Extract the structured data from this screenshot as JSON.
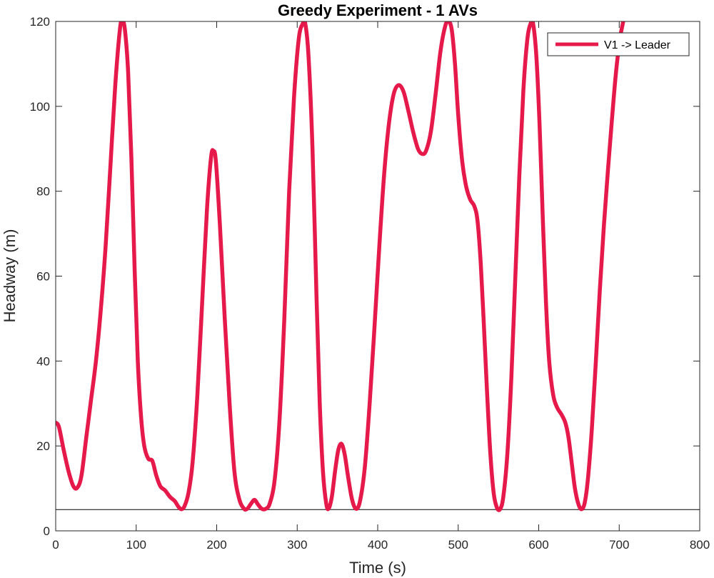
{
  "chart_data": {
    "type": "line",
    "title": "Greedy Experiment - 1 AVs",
    "xlabel": "Time (s)",
    "ylabel": "Headway (m)",
    "xlim": [
      0,
      800
    ],
    "ylim": [
      0,
      120
    ],
    "xticks": [
      0,
      100,
      200,
      300,
      400,
      500,
      600,
      700,
      800
    ],
    "yticks": [
      0,
      20,
      40,
      60,
      80,
      100,
      120
    ],
    "grid": false,
    "legend_position": "top-right",
    "series": [
      {
        "name": "V1 -> Leader",
        "color": "#e6194b",
        "points": [
          [
            0,
            25.5
          ],
          [
            4,
            24.5
          ],
          [
            10,
            19
          ],
          [
            16,
            14
          ],
          [
            22,
            10.5
          ],
          [
            27,
            10.2
          ],
          [
            32,
            13
          ],
          [
            38,
            22
          ],
          [
            44,
            31
          ],
          [
            50,
            40
          ],
          [
            56,
            52
          ],
          [
            62,
            67
          ],
          [
            68,
            86
          ],
          [
            74,
            105
          ],
          [
            80,
            118.5
          ],
          [
            83,
            120
          ],
          [
            86,
            118
          ],
          [
            90,
            108
          ],
          [
            94,
            88
          ],
          [
            98,
            62
          ],
          [
            102,
            40
          ],
          [
            106,
            27
          ],
          [
            110,
            20
          ],
          [
            115,
            17
          ],
          [
            120,
            16.5
          ],
          [
            125,
            13
          ],
          [
            130,
            10.5
          ],
          [
            136,
            9.5
          ],
          [
            142,
            8
          ],
          [
            148,
            7
          ],
          [
            152,
            5.8
          ],
          [
            156,
            5.1
          ],
          [
            160,
            5.8
          ],
          [
            165,
            9
          ],
          [
            170,
            16
          ],
          [
            176,
            32
          ],
          [
            182,
            54
          ],
          [
            188,
            76
          ],
          [
            193,
            88
          ],
          [
            196,
            89.5
          ],
          [
            199,
            87
          ],
          [
            204,
            72
          ],
          [
            210,
            50
          ],
          [
            216,
            30
          ],
          [
            222,
            14
          ],
          [
            228,
            7.5
          ],
          [
            234,
            5.2
          ],
          [
            238,
            5.2
          ],
          [
            243,
            6.5
          ],
          [
            247,
            7.3
          ],
          [
            251,
            6.3
          ],
          [
            256,
            5.2
          ],
          [
            261,
            5.2
          ],
          [
            266,
            6.5
          ],
          [
            272,
            12
          ],
          [
            278,
            26
          ],
          [
            284,
            50
          ],
          [
            290,
            80
          ],
          [
            296,
            102
          ],
          [
            302,
            116
          ],
          [
            307,
            119.5
          ],
          [
            310,
            119.5
          ],
          [
            314,
            112
          ],
          [
            319,
            90
          ],
          [
            324,
            55
          ],
          [
            328,
            30
          ],
          [
            332,
            14
          ],
          [
            336,
            6.5
          ],
          [
            339,
            5.2
          ],
          [
            343,
            8
          ],
          [
            347,
            14
          ],
          [
            351,
            19
          ],
          [
            355,
            20.5
          ],
          [
            359,
            18
          ],
          [
            363,
            13
          ],
          [
            368,
            7.5
          ],
          [
            373,
            5.2
          ],
          [
            378,
            7
          ],
          [
            384,
            15
          ],
          [
            390,
            30
          ],
          [
            396,
            48
          ],
          [
            402,
            67
          ],
          [
            408,
            84
          ],
          [
            414,
            96
          ],
          [
            420,
            103
          ],
          [
            426,
            105
          ],
          [
            432,
            103.5
          ],
          [
            438,
            99
          ],
          [
            444,
            94
          ],
          [
            450,
            90
          ],
          [
            455,
            88.8
          ],
          [
            460,
            89.5
          ],
          [
            466,
            94
          ],
          [
            472,
            103
          ],
          [
            478,
            113
          ],
          [
            484,
            119
          ],
          [
            488,
            120
          ],
          [
            492,
            118
          ],
          [
            496,
            110
          ],
          [
            500,
            98
          ],
          [
            505,
            87
          ],
          [
            510,
            81
          ],
          [
            515,
            78
          ],
          [
            520,
            76.5
          ],
          [
            524,
            73
          ],
          [
            528,
            63
          ],
          [
            532,
            48
          ],
          [
            536,
            32
          ],
          [
            540,
            18
          ],
          [
            544,
            9
          ],
          [
            548,
            5.5
          ],
          [
            552,
            5.1
          ],
          [
            556,
            8
          ],
          [
            561,
            18
          ],
          [
            566,
            36
          ],
          [
            571,
            60
          ],
          [
            576,
            84
          ],
          [
            581,
            104
          ],
          [
            586,
            116
          ],
          [
            590,
            119.5
          ],
          [
            593,
            119.5
          ],
          [
            597,
            112
          ],
          [
            601,
            96
          ],
          [
            605,
            74
          ],
          [
            609,
            54
          ],
          [
            613,
            40
          ],
          [
            618,
            32
          ],
          [
            623,
            29
          ],
          [
            628,
            27.5
          ],
          [
            633,
            25.5
          ],
          [
            637,
            22
          ],
          [
            641,
            16
          ],
          [
            645,
            10
          ],
          [
            649,
            6.5
          ],
          [
            653,
            5.1
          ],
          [
            657,
            6.5
          ],
          [
            661,
            12
          ],
          [
            666,
            24
          ],
          [
            671,
            40
          ],
          [
            676,
            57
          ],
          [
            681,
            72
          ],
          [
            686,
            85
          ],
          [
            691,
            97
          ],
          [
            696,
            108
          ],
          [
            701,
            116
          ],
          [
            705,
            120
          ],
          [
            708,
            123
          ]
        ]
      }
    ],
    "reference_line": {
      "y": 5,
      "color": "#000000"
    }
  }
}
